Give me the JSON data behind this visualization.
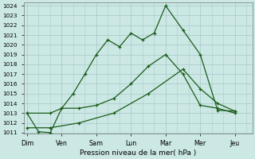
{
  "xlabel": "Pression niveau de la mer( hPa )",
  "bg_color": "#cce8e4",
  "grid_color": "#aacccc",
  "line_color": "#1a5c1a",
  "x_labels": [
    "Dim",
    "Ven",
    "Sam",
    "Lun",
    "Mar",
    "Mer",
    "Jeu"
  ],
  "ylim": [
    1011,
    1024
  ],
  "yticks": [
    1011,
    1012,
    1013,
    1014,
    1015,
    1016,
    1017,
    1018,
    1019,
    1020,
    1021,
    1022,
    1023,
    1024
  ],
  "line1_x": [
    0,
    0.33,
    0.67,
    1.0,
    1.33,
    1.67,
    2.0,
    2.33,
    2.67,
    3.0,
    3.33,
    3.67,
    4.0,
    4.5,
    5.0,
    5.5,
    6.0
  ],
  "line1_y": [
    1013.0,
    1011.1,
    1011.0,
    1013.5,
    1015.0,
    1017.0,
    1019.0,
    1020.5,
    1019.8,
    1021.2,
    1020.5,
    1021.2,
    1024.0,
    1021.5,
    1019.0,
    1013.3,
    1013.2
  ],
  "line2_x": [
    0,
    0.67,
    1.0,
    1.5,
    2.0,
    2.5,
    3.0,
    3.5,
    4.0,
    4.5,
    5.0,
    5.5,
    6.0
  ],
  "line2_y": [
    1013.0,
    1013.0,
    1013.5,
    1013.5,
    1013.8,
    1014.5,
    1016.0,
    1017.8,
    1019.0,
    1017.0,
    1013.8,
    1013.5,
    1013.0
  ],
  "line3_x": [
    0,
    0.67,
    1.5,
    2.5,
    3.5,
    4.5,
    5.0,
    5.5,
    6.0
  ],
  "line3_y": [
    1011.5,
    1011.5,
    1012.0,
    1013.0,
    1015.0,
    1017.5,
    1015.5,
    1014.0,
    1013.2
  ],
  "xlim": [
    -0.1,
    6.5
  ]
}
